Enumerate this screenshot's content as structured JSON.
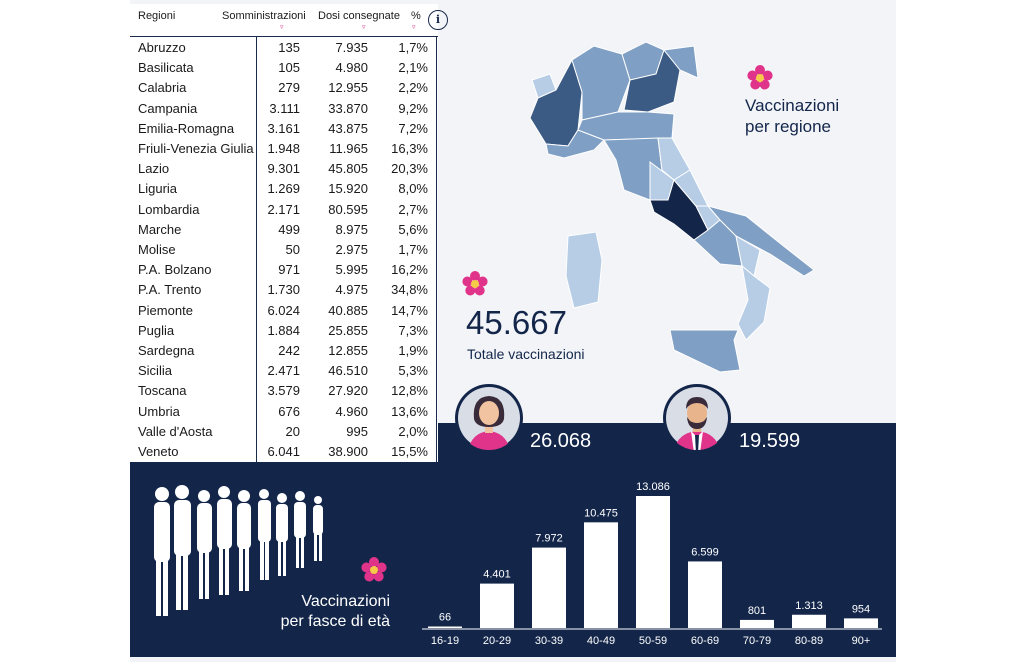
{
  "table": {
    "headers": {
      "region": "Regioni",
      "somm": "Somministrazioni",
      "dosi": "Dosi consegnate",
      "pct": "%"
    },
    "sort_glyph": "▿",
    "rows": [
      {
        "name": "Abruzzo",
        "somm": "135",
        "dosi": "7.935",
        "pct": "1,7%"
      },
      {
        "name": "Basilicata",
        "somm": "105",
        "dosi": "4.980",
        "pct": "2,1%"
      },
      {
        "name": "Calabria",
        "somm": "279",
        "dosi": "12.955",
        "pct": "2,2%"
      },
      {
        "name": "Campania",
        "somm": "3.111",
        "dosi": "33.870",
        "pct": "9,2%"
      },
      {
        "name": "Emilia-Romagna",
        "somm": "3.161",
        "dosi": "43.875",
        "pct": "7,2%"
      },
      {
        "name": "Friuli-Venezia Giulia",
        "somm": "1.948",
        "dosi": "11.965",
        "pct": "16,3%"
      },
      {
        "name": "Lazio",
        "somm": "9.301",
        "dosi": "45.805",
        "pct": "20,3%"
      },
      {
        "name": "Liguria",
        "somm": "1.269",
        "dosi": "15.920",
        "pct": "8,0%"
      },
      {
        "name": "Lombardia",
        "somm": "2.171",
        "dosi": "80.595",
        "pct": "2,7%"
      },
      {
        "name": "Marche",
        "somm": "499",
        "dosi": "8.975",
        "pct": "5,6%"
      },
      {
        "name": "Molise",
        "somm": "50",
        "dosi": "2.975",
        "pct": "1,7%"
      },
      {
        "name": "P.A. Bolzano",
        "somm": "971",
        "dosi": "5.995",
        "pct": "16,2%"
      },
      {
        "name": "P.A. Trento",
        "somm": "1.730",
        "dosi": "4.975",
        "pct": "34,8%"
      },
      {
        "name": "Piemonte",
        "somm": "6.024",
        "dosi": "40.885",
        "pct": "14,7%"
      },
      {
        "name": "Puglia",
        "somm": "1.884",
        "dosi": "25.855",
        "pct": "7,3%"
      },
      {
        "name": "Sardegna",
        "somm": "242",
        "dosi": "12.855",
        "pct": "1,9%"
      },
      {
        "name": "Sicilia",
        "somm": "2.471",
        "dosi": "46.510",
        "pct": "5,3%"
      },
      {
        "name": "Toscana",
        "somm": "3.579",
        "dosi": "27.920",
        "pct": "12,8%"
      },
      {
        "name": "Umbria",
        "somm": "676",
        "dosi": "4.960",
        "pct": "13,6%"
      },
      {
        "name": "Valle d'Aosta",
        "somm": "20",
        "dosi": "995",
        "pct": "2,0%"
      },
      {
        "name": "Veneto",
        "somm": "6.041",
        "dosi": "38.900",
        "pct": "15,5%"
      }
    ]
  },
  "info_icon": "i",
  "map": {
    "title_line1": "Vaccinazioni",
    "title_line2": "per regione"
  },
  "total": {
    "value": "45.667",
    "label": "Totale vaccinazioni"
  },
  "gender": {
    "female": "26.068",
    "male": "19.599"
  },
  "age": {
    "title_line1": "Vaccinazioni",
    "title_line2": "per fasce di età"
  },
  "colors": {
    "dark": "#13264a",
    "accent": "#e0338a",
    "map_light": "#b7cde6",
    "map_mid": "#7f9fc4",
    "map_dark": "#3b5b85"
  },
  "chart_data": {
    "type": "bar",
    "categories": [
      "16-19",
      "20-29",
      "30-39",
      "40-49",
      "50-59",
      "60-69",
      "70-79",
      "80-89",
      "90+"
    ],
    "values": [
      66,
      4401,
      7972,
      10475,
      13086,
      6599,
      801,
      1313,
      954
    ],
    "labels": [
      "66",
      "4.401",
      "7.972",
      "10.475",
      "13.086",
      "6.599",
      "801",
      "1.313",
      "954"
    ]
  }
}
